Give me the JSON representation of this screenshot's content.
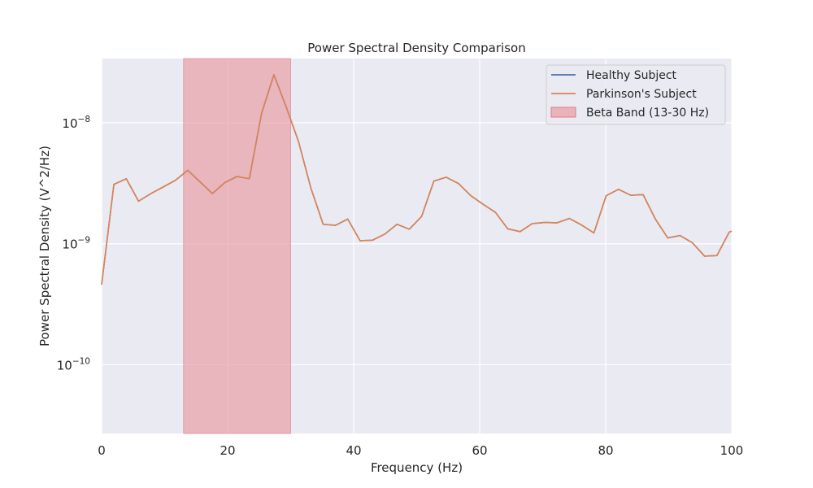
{
  "chart_data": {
    "type": "line",
    "title": "Power Spectral Density Comparison",
    "xlabel": "Frequency (Hz)",
    "ylabel": "Power Spectral Density (V^2/Hz)",
    "xlim": [
      0,
      100
    ],
    "ylim": [
      2.7e-11,
      3.4e-08
    ],
    "yscale": "log",
    "grid": true,
    "legend_position": "top-right",
    "x_ticks": [
      0,
      20,
      40,
      60,
      80,
      100
    ],
    "x_tick_labels": [
      "0",
      "20",
      "40",
      "60",
      "80",
      "100"
    ],
    "y_ticks": [
      1e-10,
      1e-09,
      1e-08
    ],
    "y_tick_labels": [
      {
        "base": "10",
        "exp": "−10"
      },
      {
        "base": "10",
        "exp": "−9"
      },
      {
        "base": "10",
        "exp": "−8"
      }
    ],
    "shaded_band": {
      "label": "Beta Band (13-30 Hz)",
      "x_start": 13,
      "x_end": 30,
      "color": "#e8a0a8"
    },
    "x": [
      0,
      1.95,
      3.91,
      5.86,
      7.81,
      9.77,
      11.72,
      13.67,
      15.63,
      17.58,
      19.53,
      21.48,
      23.44,
      25.39,
      27.34,
      29.3,
      31.25,
      33.2,
      35.16,
      37.11,
      39.06,
      41.02,
      42.97,
      44.92,
      46.88,
      48.83,
      50.78,
      52.73,
      54.69,
      56.64,
      58.59,
      60.55,
      62.5,
      64.45,
      66.41,
      68.36,
      70.31,
      72.27,
      74.22,
      76.17,
      78.13,
      80.08,
      82.03,
      83.98,
      85.94,
      87.89,
      89.84,
      91.8,
      93.75,
      95.7,
      97.66,
      99.61,
      100
    ],
    "series": [
      {
        "name": "Healthy Subject",
        "color": "#4c72b0",
        "values": [
          4.6e-10,
          3.1e-09,
          3.45e-09,
          2.25e-09,
          2.6e-09,
          2.95e-09,
          3.35e-09,
          4.05e-09,
          3.25e-09,
          2.6e-09,
          3.2e-09,
          3.6e-09,
          3.45e-09,
          1.2e-08,
          2.5e-08,
          1.35e-08,
          7e-09,
          2.9e-09,
          1.45e-09,
          1.42e-09,
          1.6e-09,
          1.06e-09,
          1.07e-09,
          1.2e-09,
          1.45e-09,
          1.32e-09,
          1.68e-09,
          3.3e-09,
          3.55e-09,
          3.15e-09,
          2.5e-09,
          2.12e-09,
          1.82e-09,
          1.33e-09,
          1.26e-09,
          1.47e-09,
          1.5e-09,
          1.49e-09,
          1.62e-09,
          1.43e-09,
          1.23e-09,
          2.5e-09,
          2.82e-09,
          2.52e-09,
          2.55e-09,
          1.6e-09,
          1.12e-09,
          1.17e-09,
          1.02e-09,
          7.9e-10,
          8e-10,
          1.25e-09,
          1.27e-09
        ]
      },
      {
        "name": "Parkinson's Subject",
        "color": "#dd8452",
        "values": [
          4.6e-10,
          3.1e-09,
          3.45e-09,
          2.25e-09,
          2.6e-09,
          2.95e-09,
          3.35e-09,
          4.05e-09,
          3.25e-09,
          2.6e-09,
          3.2e-09,
          3.6e-09,
          3.45e-09,
          1.2e-08,
          2.5e-08,
          1.35e-08,
          7e-09,
          2.9e-09,
          1.45e-09,
          1.42e-09,
          1.6e-09,
          1.06e-09,
          1.07e-09,
          1.2e-09,
          1.45e-09,
          1.32e-09,
          1.68e-09,
          3.3e-09,
          3.55e-09,
          3.15e-09,
          2.5e-09,
          2.12e-09,
          1.82e-09,
          1.33e-09,
          1.26e-09,
          1.47e-09,
          1.5e-09,
          1.49e-09,
          1.62e-09,
          1.43e-09,
          1.23e-09,
          2.5e-09,
          2.82e-09,
          2.52e-09,
          2.55e-09,
          1.6e-09,
          1.12e-09,
          1.17e-09,
          1.02e-09,
          7.9e-10,
          8e-10,
          1.25e-09,
          1.27e-09
        ]
      }
    ],
    "legend": [
      {
        "label": "Healthy Subject",
        "kind": "line",
        "color": "#4c72b0"
      },
      {
        "label": "Parkinson's Subject",
        "kind": "line",
        "color": "#dd8452"
      },
      {
        "label": "Beta Band (13-30 Hz)",
        "kind": "patch",
        "color": "#e8a0a8"
      }
    ]
  },
  "style": {
    "plot_background": "#eaeaf2",
    "grid_color": "#ffffff",
    "text_color": "#262626"
  }
}
